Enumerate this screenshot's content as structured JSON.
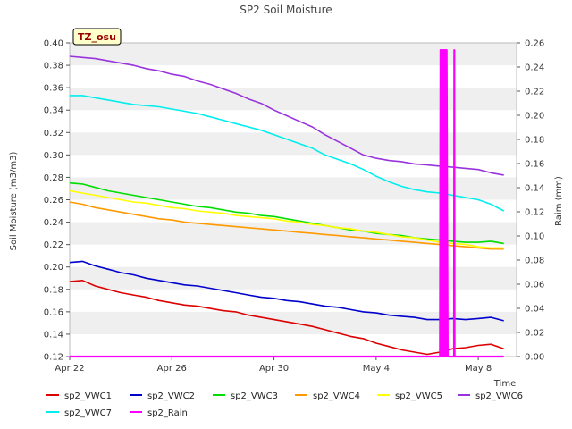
{
  "chart_data": {
    "type": "line",
    "title": "SP2 Soil Moisture",
    "badge": "TZ_osu",
    "xlabel": "Time",
    "ylabel": "Soil Moisture (m3/m3)",
    "y2label": "Raim (mm)",
    "x_ticks": [
      "Apr 22",
      "Apr 26",
      "Apr 30",
      "May 4",
      "May 8"
    ],
    "x_tick_days": [
      0,
      4,
      8,
      12,
      16
    ],
    "xlim_days": [
      0,
      17.5
    ],
    "ylim": [
      0.12,
      0.4
    ],
    "y_ticks": [
      "0.12",
      "0.14",
      "0.16",
      "0.18",
      "0.20",
      "0.22",
      "0.24",
      "0.26",
      "0.28",
      "0.30",
      "0.32",
      "0.34",
      "0.36",
      "0.38",
      "0.40"
    ],
    "y2lim": [
      0.0,
      0.26
    ],
    "y2_ticks": [
      "0.00",
      "0.02",
      "0.04",
      "0.06",
      "0.08",
      "0.10",
      "0.12",
      "0.14",
      "0.16",
      "0.18",
      "0.20",
      "0.22",
      "0.24",
      "0.26"
    ],
    "grid": "horizontal bands",
    "legend_position": "bottom",
    "series": [
      {
        "name": "sp2_VWC1",
        "color": "#dd0000",
        "axis": "left",
        "x": [
          0,
          0.5,
          1,
          1.5,
          2,
          2.5,
          3,
          3.5,
          4,
          4.5,
          5,
          5.5,
          6,
          6.5,
          7,
          7.5,
          8,
          8.5,
          9,
          9.5,
          10,
          10.5,
          11,
          11.5,
          12,
          12.5,
          13,
          13.5,
          14,
          14.5,
          15,
          15.5,
          16,
          16.5,
          17
        ],
        "values": [
          0.187,
          0.188,
          0.183,
          0.18,
          0.177,
          0.175,
          0.173,
          0.17,
          0.168,
          0.166,
          0.165,
          0.163,
          0.161,
          0.16,
          0.157,
          0.155,
          0.153,
          0.151,
          0.149,
          0.147,
          0.144,
          0.141,
          0.138,
          0.136,
          0.132,
          0.129,
          0.126,
          0.124,
          0.122,
          0.124,
          0.127,
          0.128,
          0.13,
          0.131,
          0.127
        ]
      },
      {
        "name": "sp2_VWC2",
        "color": "#0000cc",
        "axis": "left",
        "x": [
          0,
          0.5,
          1,
          1.5,
          2,
          2.5,
          3,
          3.5,
          4,
          4.5,
          5,
          5.5,
          6,
          6.5,
          7,
          7.5,
          8,
          8.5,
          9,
          9.5,
          10,
          10.5,
          11,
          11.5,
          12,
          12.5,
          13,
          13.5,
          14,
          14.5,
          15,
          15.5,
          16,
          16.5,
          17
        ],
        "values": [
          0.204,
          0.205,
          0.201,
          0.198,
          0.195,
          0.193,
          0.19,
          0.188,
          0.186,
          0.184,
          0.183,
          0.181,
          0.179,
          0.177,
          0.175,
          0.173,
          0.172,
          0.17,
          0.169,
          0.167,
          0.165,
          0.164,
          0.162,
          0.16,
          0.159,
          0.157,
          0.156,
          0.155,
          0.153,
          0.153,
          0.154,
          0.153,
          0.154,
          0.155,
          0.152
        ]
      },
      {
        "name": "sp2_VWC3",
        "color": "#00dd00",
        "axis": "left",
        "x": [
          0,
          0.5,
          1,
          1.5,
          2,
          2.5,
          3,
          3.5,
          4,
          4.5,
          5,
          5.5,
          6,
          6.5,
          7,
          7.5,
          8,
          8.5,
          9,
          9.5,
          10,
          10.5,
          11,
          11.5,
          12,
          12.5,
          13,
          13.5,
          14,
          14.5,
          15,
          15.5,
          16,
          16.5,
          17
        ],
        "values": [
          0.275,
          0.274,
          0.271,
          0.268,
          0.266,
          0.264,
          0.262,
          0.26,
          0.258,
          0.256,
          0.254,
          0.253,
          0.251,
          0.249,
          0.248,
          0.246,
          0.245,
          0.243,
          0.241,
          0.239,
          0.237,
          0.235,
          0.233,
          0.232,
          0.23,
          0.229,
          0.228,
          0.226,
          0.225,
          0.224,
          0.223,
          0.222,
          0.222,
          0.223,
          0.221
        ]
      },
      {
        "name": "sp2_VWC4",
        "color": "#ff9900",
        "axis": "left",
        "x": [
          0,
          0.5,
          1,
          1.5,
          2,
          2.5,
          3,
          3.5,
          4,
          4.5,
          5,
          5.5,
          6,
          6.5,
          7,
          7.5,
          8,
          8.5,
          9,
          9.5,
          10,
          10.5,
          11,
          11.5,
          12,
          12.5,
          13,
          13.5,
          14,
          14.5,
          15,
          15.5,
          16,
          16.5,
          17
        ],
        "values": [
          0.258,
          0.256,
          0.253,
          0.251,
          0.249,
          0.247,
          0.245,
          0.243,
          0.242,
          0.24,
          0.239,
          0.238,
          0.237,
          0.236,
          0.235,
          0.234,
          0.233,
          0.232,
          0.231,
          0.23,
          0.229,
          0.228,
          0.227,
          0.226,
          0.225,
          0.224,
          0.223,
          0.222,
          0.221,
          0.22,
          0.219,
          0.218,
          0.217,
          0.216,
          0.216
        ]
      },
      {
        "name": "sp2_VWC5",
        "color": "#ffff00",
        "axis": "left",
        "x": [
          0,
          0.5,
          1,
          1.5,
          2,
          2.5,
          3,
          3.5,
          4,
          4.5,
          5,
          5.5,
          6,
          6.5,
          7,
          7.5,
          8,
          8.5,
          9,
          9.5,
          10,
          10.5,
          11,
          11.5,
          12,
          12.5,
          13,
          13.5,
          14,
          14.5,
          15,
          15.5,
          16,
          16.5,
          17
        ],
        "values": [
          0.268,
          0.266,
          0.264,
          0.262,
          0.26,
          0.258,
          0.257,
          0.255,
          0.253,
          0.252,
          0.25,
          0.249,
          0.248,
          0.246,
          0.245,
          0.244,
          0.243,
          0.241,
          0.24,
          0.238,
          0.237,
          0.235,
          0.234,
          0.232,
          0.231,
          0.229,
          0.227,
          0.226,
          0.224,
          0.222,
          0.221,
          0.22,
          0.218,
          0.217,
          0.217
        ]
      },
      {
        "name": "sp2_VWC6",
        "color": "#9933dd",
        "axis": "left",
        "x": [
          0,
          0.5,
          1,
          1.5,
          2,
          2.5,
          3,
          3.5,
          4,
          4.5,
          5,
          5.5,
          6,
          6.5,
          7,
          7.5,
          8,
          8.5,
          9,
          9.5,
          10,
          10.5,
          11,
          11.5,
          12,
          12.5,
          13,
          13.5,
          14,
          14.5,
          15,
          15.5,
          16,
          16.5,
          17
        ],
        "values": [
          0.388,
          0.387,
          0.386,
          0.384,
          0.382,
          0.38,
          0.377,
          0.375,
          0.372,
          0.37,
          0.366,
          0.363,
          0.359,
          0.355,
          0.35,
          0.346,
          0.34,
          0.335,
          0.33,
          0.325,
          0.318,
          0.312,
          0.306,
          0.3,
          0.297,
          0.295,
          0.294,
          0.292,
          0.291,
          0.29,
          0.289,
          0.288,
          0.287,
          0.284,
          0.282
        ]
      },
      {
        "name": "sp2_VWC7",
        "color": "#00eeee",
        "axis": "left",
        "x": [
          0,
          0.5,
          1,
          1.5,
          2,
          2.5,
          3,
          3.5,
          4,
          4.5,
          5,
          5.5,
          6,
          6.5,
          7,
          7.5,
          8,
          8.5,
          9,
          9.5,
          10,
          10.5,
          11,
          11.5,
          12,
          12.5,
          13,
          13.5,
          14,
          14.5,
          15,
          15.5,
          16,
          16.5,
          17
        ],
        "values": [
          0.353,
          0.353,
          0.351,
          0.349,
          0.347,
          0.345,
          0.344,
          0.343,
          0.341,
          0.339,
          0.337,
          0.334,
          0.331,
          0.328,
          0.325,
          0.322,
          0.318,
          0.314,
          0.31,
          0.306,
          0.3,
          0.296,
          0.292,
          0.287,
          0.281,
          0.276,
          0.272,
          0.269,
          0.267,
          0.266,
          0.264,
          0.262,
          0.26,
          0.256,
          0.25
        ]
      },
      {
        "name": "sp2_Rain",
        "color": "#ff00ff",
        "axis": "right",
        "x": [
          0,
          14.5,
          14.52,
          14.54,
          14.56,
          14.58,
          14.6,
          14.62,
          14.64,
          14.66,
          14.68,
          14.7,
          14.72,
          14.74,
          14.76,
          14.8,
          15.05,
          15.06,
          15.07,
          16,
          17
        ],
        "values": [
          0,
          0,
          0.254,
          0,
          0.254,
          0,
          0.254,
          0,
          0.254,
          0,
          0.254,
          0,
          0.254,
          0,
          0.254,
          0,
          0,
          0.254,
          0,
          0,
          0
        ]
      }
    ]
  }
}
